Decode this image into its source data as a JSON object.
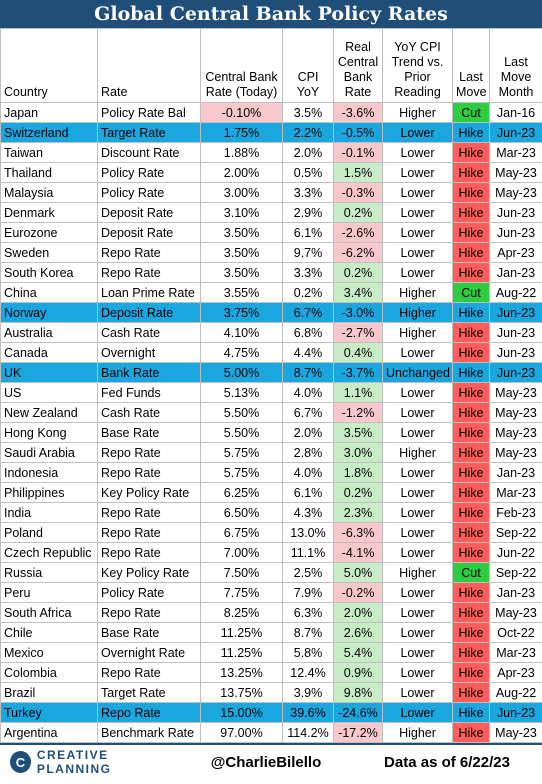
{
  "title": "Global Central Bank Policy Rates",
  "headers": {
    "country": "Country",
    "rate": "Rate",
    "cb_rate": [
      "Central Bank",
      "Rate (Today)"
    ],
    "cpi": [
      "CPI",
      "YoY"
    ],
    "real": [
      "Real",
      "Central",
      "Bank",
      "Rate"
    ],
    "trend": [
      "YoY CPI",
      "Trend vs.",
      "Prior",
      "Reading"
    ],
    "last_move": [
      "Last",
      "Move"
    ],
    "last_move_month": [
      "Last",
      "Move",
      "Month"
    ]
  },
  "rows": [
    {
      "country": "Japan",
      "rate": "Policy Rate Bal",
      "cb": "-0.10%",
      "cpi": "3.5%",
      "real": "-3.6%",
      "trend": "Higher",
      "move": "Cut",
      "month": "Jan-16",
      "highlight": false
    },
    {
      "country": "Switzerland",
      "rate": "Target Rate",
      "cb": "1.75%",
      "cpi": "2.2%",
      "real": "-0.5%",
      "trend": "Lower",
      "move": "Hike",
      "month": "Jun-23",
      "highlight": true
    },
    {
      "country": "Taiwan",
      "rate": "Discount Rate",
      "cb": "1.88%",
      "cpi": "2.0%",
      "real": "-0.1%",
      "trend": "Lower",
      "move": "Hike",
      "month": "Mar-23",
      "highlight": false
    },
    {
      "country": "Thailand",
      "rate": "Policy Rate",
      "cb": "2.00%",
      "cpi": "0.5%",
      "real": "1.5%",
      "trend": "Lower",
      "move": "Hike",
      "month": "May-23",
      "highlight": false
    },
    {
      "country": "Malaysia",
      "rate": "Policy Rate",
      "cb": "3.00%",
      "cpi": "3.3%",
      "real": "-0.3%",
      "trend": "Lower",
      "move": "Hike",
      "month": "May-23",
      "highlight": false
    },
    {
      "country": "Denmark",
      "rate": "Deposit Rate",
      "cb": "3.10%",
      "cpi": "2.9%",
      "real": "0.2%",
      "trend": "Lower",
      "move": "Hike",
      "month": "Jun-23",
      "highlight": false
    },
    {
      "country": "Eurozone",
      "rate": "Deposit Rate",
      "cb": "3.50%",
      "cpi": "6.1%",
      "real": "-2.6%",
      "trend": "Lower",
      "move": "Hike",
      "month": "Jun-23",
      "highlight": false
    },
    {
      "country": "Sweden",
      "rate": "Repo Rate",
      "cb": "3.50%",
      "cpi": "9.7%",
      "real": "-6.2%",
      "trend": "Lower",
      "move": "Hike",
      "month": "Apr-23",
      "highlight": false
    },
    {
      "country": "South Korea",
      "rate": "Repo Rate",
      "cb": "3.50%",
      "cpi": "3.3%",
      "real": "0.2%",
      "trend": "Lower",
      "move": "Hike",
      "month": "Jan-23",
      "highlight": false
    },
    {
      "country": "China",
      "rate": "Loan Prime Rate",
      "cb": "3.55%",
      "cpi": "0.2%",
      "real": "3.4%",
      "trend": "Higher",
      "move": "Cut",
      "month": "Aug-22",
      "highlight": false
    },
    {
      "country": "Norway",
      "rate": "Deposit Rate",
      "cb": "3.75%",
      "cpi": "6.7%",
      "real": "-3.0%",
      "trend": "Higher",
      "move": "Hike",
      "month": "Jun-23",
      "highlight": true
    },
    {
      "country": "Australia",
      "rate": "Cash Rate",
      "cb": "4.10%",
      "cpi": "6.8%",
      "real": "-2.7%",
      "trend": "Higher",
      "move": "Hike",
      "month": "Jun-23",
      "highlight": false
    },
    {
      "country": "Canada",
      "rate": "Overnight",
      "cb": "4.75%",
      "cpi": "4.4%",
      "real": "0.4%",
      "trend": "Lower",
      "move": "Hike",
      "month": "Jun-23",
      "highlight": false
    },
    {
      "country": "UK",
      "rate": "Bank Rate",
      "cb": "5.00%",
      "cpi": "8.7%",
      "real": "-3.7%",
      "trend": "Unchanged",
      "move": "Hike",
      "month": "Jun-23",
      "highlight": true
    },
    {
      "country": "US",
      "rate": "Fed Funds",
      "cb": "5.13%",
      "cpi": "4.0%",
      "real": "1.1%",
      "trend": "Lower",
      "move": "Hike",
      "month": "May-23",
      "highlight": false
    },
    {
      "country": "New Zealand",
      "rate": "Cash Rate",
      "cb": "5.50%",
      "cpi": "6.7%",
      "real": "-1.2%",
      "trend": "Lower",
      "move": "Hike",
      "month": "May-23",
      "highlight": false
    },
    {
      "country": "Hong Kong",
      "rate": "Base Rate",
      "cb": "5.50%",
      "cpi": "2.0%",
      "real": "3.5%",
      "trend": "Lower",
      "move": "Hike",
      "month": "May-23",
      "highlight": false
    },
    {
      "country": "Saudi Arabia",
      "rate": "Repo Rate",
      "cb": "5.75%",
      "cpi": "2.8%",
      "real": "3.0%",
      "trend": "Higher",
      "move": "Hike",
      "month": "May-23",
      "highlight": false
    },
    {
      "country": "Indonesia",
      "rate": "Repo Rate",
      "cb": "5.75%",
      "cpi": "4.0%",
      "real": "1.8%",
      "trend": "Lower",
      "move": "Hike",
      "month": "Jan-23",
      "highlight": false
    },
    {
      "country": "Philippines",
      "rate": "Key Policy Rate",
      "cb": "6.25%",
      "cpi": "6.1%",
      "real": "0.2%",
      "trend": "Lower",
      "move": "Hike",
      "month": "Mar-23",
      "highlight": false
    },
    {
      "country": "India",
      "rate": "Repo Rate",
      "cb": "6.50%",
      "cpi": "4.3%",
      "real": "2.3%",
      "trend": "Lower",
      "move": "Hike",
      "month": "Feb-23",
      "highlight": false
    },
    {
      "country": "Poland",
      "rate": "Repo Rate",
      "cb": "6.75%",
      "cpi": "13.0%",
      "real": "-6.3%",
      "trend": "Lower",
      "move": "Hike",
      "month": "Sep-22",
      "highlight": false
    },
    {
      "country": "Czech Republic",
      "rate": "Repo Rate",
      "cb": "7.00%",
      "cpi": "11.1%",
      "real": "-4.1%",
      "trend": "Lower",
      "move": "Hike",
      "month": "Jun-22",
      "highlight": false
    },
    {
      "country": "Russia",
      "rate": "Key Policy Rate",
      "cb": "7.50%",
      "cpi": "2.5%",
      "real": "5.0%",
      "trend": "Higher",
      "move": "Cut",
      "month": "Sep-22",
      "highlight": false
    },
    {
      "country": "Peru",
      "rate": "Policy Rate",
      "cb": "7.75%",
      "cpi": "7.9%",
      "real": "-0.2%",
      "trend": "Lower",
      "move": "Hike",
      "month": "Jan-23",
      "highlight": false
    },
    {
      "country": "South Africa",
      "rate": "Repo Rate",
      "cb": "8.25%",
      "cpi": "6.3%",
      "real": "2.0%",
      "trend": "Lower",
      "move": "Hike",
      "month": "May-23",
      "highlight": false
    },
    {
      "country": "Chile",
      "rate": "Base Rate",
      "cb": "11.25%",
      "cpi": "8.7%",
      "real": "2.6%",
      "trend": "Lower",
      "move": "Hike",
      "month": "Oct-22",
      "highlight": false
    },
    {
      "country": "Mexico",
      "rate": "Overnight Rate",
      "cb": "11.25%",
      "cpi": "5.8%",
      "real": "5.4%",
      "trend": "Lower",
      "move": "Hike",
      "month": "Mar-23",
      "highlight": false
    },
    {
      "country": "Colombia",
      "rate": "Repo Rate",
      "cb": "13.25%",
      "cpi": "12.4%",
      "real": "0.9%",
      "trend": "Lower",
      "move": "Hike",
      "month": "Apr-23",
      "highlight": false
    },
    {
      "country": "Brazil",
      "rate": "Target Rate",
      "cb": "13.75%",
      "cpi": "3.9%",
      "real": "9.8%",
      "trend": "Lower",
      "move": "Hike",
      "month": "Aug-22",
      "highlight": false
    },
    {
      "country": "Turkey",
      "rate": "Repo Rate",
      "cb": "15.00%",
      "cpi": "39.6%",
      "real": "-24.6%",
      "trend": "Lower",
      "move": "Hike",
      "month": "Jun-23",
      "highlight": true
    },
    {
      "country": "Argentina",
      "rate": "Benchmark Rate",
      "cb": "97.00%",
      "cpi": "114.2%",
      "real": "-17.2%",
      "trend": "Higher",
      "move": "Hike",
      "month": "May-23",
      "highlight": false
    }
  ],
  "footer": {
    "logo_text": "CREATIVE PLANNING",
    "logo_mark": "C",
    "handle": "@CharlieBilello",
    "as_of": "Data as of 6/22/23"
  },
  "colors": {
    "title_bg": "#1f4e79",
    "highlight_row": "#1aa7e0",
    "hike": "#ff5c5c",
    "cut": "#2ecc40",
    "negative_real": "#f8c8cd",
    "positive_real": "#c8ecc5"
  }
}
